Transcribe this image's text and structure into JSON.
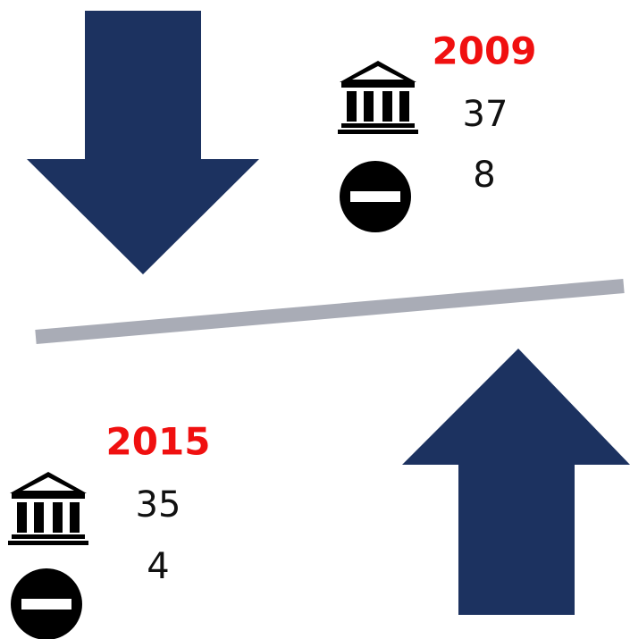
{
  "panels": [
    {
      "year": "2009",
      "institutions": "37",
      "blocked": "8"
    },
    {
      "year": "2015",
      "institutions": "35",
      "blocked": "4"
    }
  ]
}
